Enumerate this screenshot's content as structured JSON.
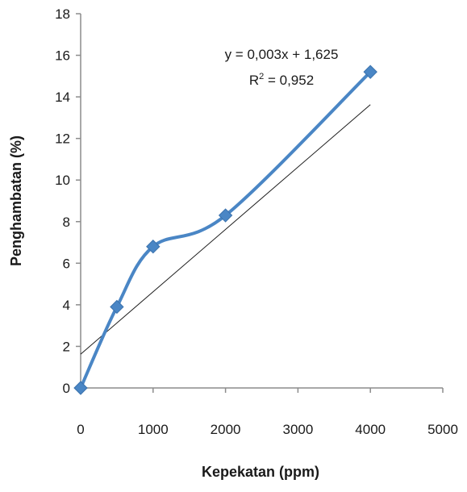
{
  "chart_data": {
    "type": "line",
    "xlabel": "Kepekatan (ppm)",
    "ylabel": "Penghambatan (%)",
    "xlim": [
      0,
      5000
    ],
    "ylim": [
      0,
      18
    ],
    "x_ticks": [
      "0",
      "1000",
      "2000",
      "3000",
      "4000",
      "5000"
    ],
    "y_ticks": [
      "0",
      "2",
      "4",
      "6",
      "8",
      "10",
      "12",
      "14",
      "16",
      "18"
    ],
    "grid": false,
    "legend": "none",
    "series": [
      {
        "x": [
          0,
          500,
          1000,
          2000,
          4000
        ],
        "y": [
          0,
          3.9,
          6.8,
          8.3,
          15.2
        ],
        "color": "#4a86c5",
        "marker": "diamond",
        "smooth": true
      }
    ],
    "trendline": {
      "slope": 0.003,
      "intercept": 1.625,
      "x_range": [
        0,
        4000
      ],
      "color": "#1a1a1a"
    },
    "annotations": {
      "equation": "y = 0,003x + 1,625",
      "r2_prefix": "R",
      "r2_sup": "2",
      "r2_value": " = 0,952"
    }
  }
}
